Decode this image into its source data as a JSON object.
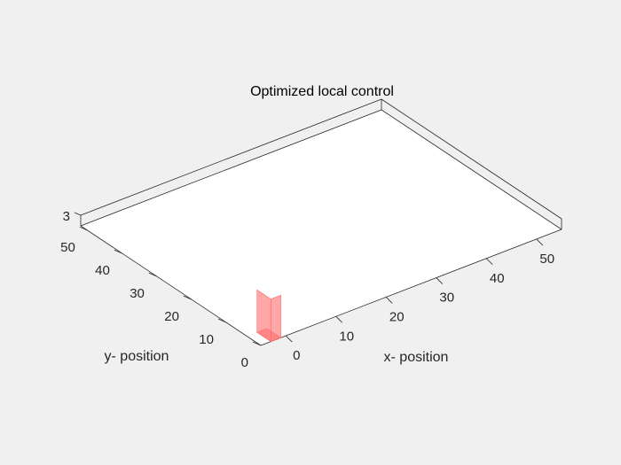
{
  "chart_data": {
    "type": "surface",
    "title": "Optimized local control",
    "xlabel": "x- position",
    "ylabel": "y- position",
    "zlabel": "",
    "xlim": [
      -5,
      55
    ],
    "ylim": [
      0,
      52
    ],
    "zlim": [
      0,
      3
    ],
    "x_ticks": [
      0,
      10,
      20,
      30,
      40,
      50
    ],
    "y_ticks": [
      0,
      10,
      20,
      30,
      40,
      50
    ],
    "z_ticks": [
      3
    ],
    "grid": false,
    "surface_color": "#ff6b6b",
    "control_region": {
      "x": [
        -3,
        -1
      ],
      "y": [
        0,
        4
      ],
      "z": [
        0,
        2
      ]
    }
  }
}
